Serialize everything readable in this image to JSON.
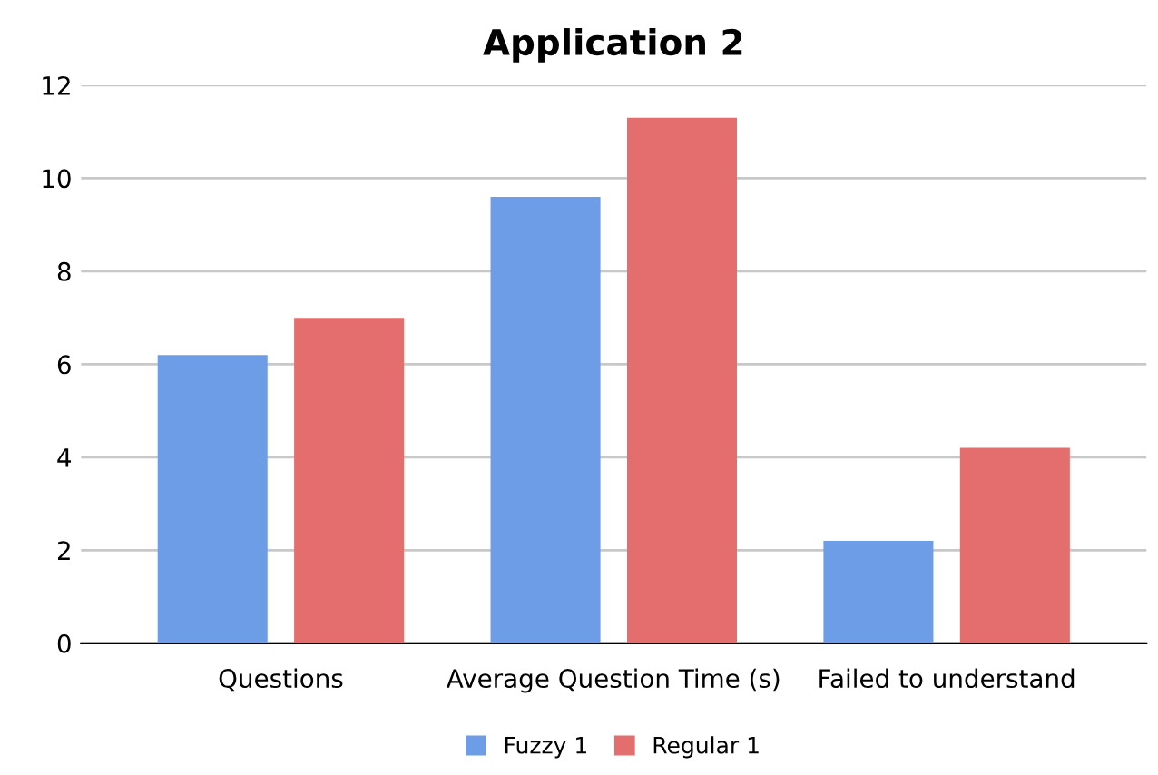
{
  "chart_data": {
    "type": "bar",
    "title": "Application 2",
    "categories": [
      "Questions",
      "Average Question Time (s)",
      "Failed to understand"
    ],
    "series": [
      {
        "name": "Fuzzy 1",
        "color": "#6d9de6",
        "values": [
          6.2,
          9.6,
          2.2
        ]
      },
      {
        "name": "Regular 1",
        "color": "#e46e6e",
        "values": [
          7.0,
          11.3,
          4.2
        ]
      }
    ],
    "ylim": [
      0,
      12
    ],
    "yticks": [
      0,
      2,
      4,
      6,
      8,
      10,
      12
    ],
    "grid": "y",
    "legend": "bottom"
  }
}
